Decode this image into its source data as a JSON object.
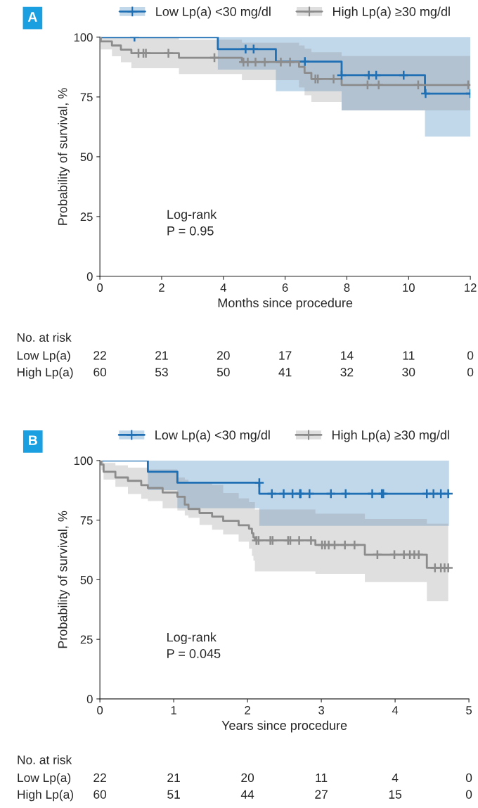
{
  "chart_data": [
    {
      "type": "step",
      "title": "A",
      "xlabel": "Months since procedure",
      "ylabel": "Probability of survival, %",
      "xlim": [
        0,
        12
      ],
      "ylim": [
        0,
        100
      ],
      "xticks": [
        0,
        2,
        4,
        6,
        8,
        10,
        12
      ],
      "yticks": [
        0,
        25,
        50,
        75,
        100
      ],
      "legend": "top",
      "grid": false,
      "series": [
        {
          "name": "Low Lp(a) <30 mg/dl",
          "color": "#1f6fb4",
          "x": [
            0,
            3.82,
            5.7,
            7.83,
            10.53,
            12
          ],
          "values": [
            100,
            95,
            89.8,
            84.1,
            76.4,
            76.4
          ],
          "lower": [
            100,
            86.4,
            77.4,
            69.4,
            58.4,
            58.4
          ],
          "upper": [
            100,
            100,
            100,
            100,
            100,
            100
          ]
        },
        {
          "name": "High Lp(a) ≥30 mg/dl",
          "color": "#8c8c8c",
          "x": [
            0,
            0.03,
            0.39,
            0.68,
            1.02,
            2.56,
            4.6,
            6.45,
            6.63,
            6.85,
            7.83,
            12
          ],
          "values": [
            100,
            98.2,
            96.5,
            94.8,
            93.3,
            91.4,
            89.6,
            87.6,
            85.1,
            82.5,
            80.0,
            80.0
          ],
          "lower": [
            100,
            94.9,
            92.0,
            89.5,
            87.0,
            84.6,
            82.0,
            79.0,
            75.7,
            72.9,
            69.4,
            69.4
          ],
          "upper": [
            100,
            100,
            100,
            100,
            100,
            98.9,
            97.7,
            96.5,
            95.2,
            93.7,
            92.1,
            92.1
          ]
        },
        {
          "type": "scatter",
          "marker": "cross",
          "color": "#1f6fb4",
          "x": [
            1.12,
            4.72,
            4.98,
            6.64,
            7.83,
            8.71,
            8.95,
            9.84,
            10.55,
            12
          ],
          "values": [
            100,
            95,
            95,
            89.8,
            84.1,
            84.1,
            84.1,
            84.1,
            76.4,
            76.4
          ]
        },
        {
          "type": "scatter",
          "marker": "cross",
          "color": "#8c8c8c",
          "x": [
            1.25,
            1.41,
            1.49,
            2.22,
            3.71,
            4.65,
            4.79,
            5.04,
            5.34,
            5.86,
            6.16,
            6.98,
            7.06,
            7.57,
            8.67,
            9.03,
            10.31,
            11.93
          ],
          "values": [
            93.3,
            93.3,
            93.3,
            93.3,
            91.4,
            89.6,
            89.6,
            89.6,
            89.6,
            89.6,
            89.6,
            82.5,
            82.5,
            82.5,
            80,
            80,
            80,
            80
          ]
        }
      ],
      "annotations": [
        "Log-rank\nP = 0.95",
        "No. at risk",
        "Low Lp(a)",
        "High Lp(a)",
        "22",
        "21",
        "20",
        "17",
        "14",
        "11",
        "0",
        "60",
        "53",
        "50",
        "41",
        "32",
        "30",
        "0"
      ]
    },
    {
      "type": "step",
      "title": "B",
      "xlabel": "Years since procedure",
      "ylabel": "Probability of survival, %",
      "xlim": [
        0,
        5
      ],
      "ylim": [
        0,
        100
      ],
      "xticks": [
        0,
        1,
        2,
        3,
        4,
        5
      ],
      "yticks": [
        0,
        25,
        50,
        75,
        100
      ],
      "legend": "top",
      "grid": false,
      "series": [
        {
          "name": "Low Lp(a) <30 mg/dl",
          "color": "#1f6fb4",
          "x": [
            0,
            0.65,
            1.05,
            2.16,
            4.73
          ],
          "values": [
            100,
            95.3,
            90.7,
            86.1,
            86.1
          ],
          "lower": [
            100,
            87.6,
            80.0,
            72.6,
            72.6
          ],
          "upper": [
            100,
            100,
            100,
            100,
            100
          ]
        },
        {
          "name": "High Lp(a) ≥30 mg/dl",
          "color": "#8c8c8c",
          "x": [
            0,
            0.02,
            0.05,
            0.21,
            0.38,
            0.56,
            0.65,
            0.85,
            1.05,
            1.15,
            1.2,
            1.35,
            1.52,
            1.67,
            1.88,
            2.02,
            2.06,
            2.08,
            2.1,
            2.92,
            3.59,
            4.43,
            4.72
          ],
          "values": [
            100,
            98.3,
            95.3,
            92.9,
            91.5,
            89.7,
            88.5,
            86.6,
            84.8,
            81.5,
            79.7,
            78.0,
            76.5,
            74.7,
            72.9,
            71.4,
            69.5,
            67.8,
            66.5,
            64.6,
            60.5,
            55.0,
            55.0
          ],
          "lower": [
            100,
            96,
            92,
            89,
            86,
            84,
            83,
            80,
            79,
            77,
            76,
            73,
            71,
            69,
            66,
            63,
            60,
            58,
            53.5,
            52.5,
            49,
            41,
            41
          ],
          "upper": [
            100,
            100,
            99,
            98,
            97,
            97,
            96.3,
            96.3,
            92.9,
            92,
            91,
            90.5,
            89.7,
            86.4,
            84.1,
            82.6,
            82.6,
            82.6,
            79.5,
            77.7,
            75.5,
            73.5,
            73.5
          ]
        },
        {
          "type": "scatter",
          "marker": "cross",
          "color": "#1f6fb4",
          "x": [
            2.16,
            2.33,
            2.49,
            2.61,
            2.71,
            2.72,
            2.84,
            3.13,
            3.33,
            3.69,
            3.82,
            3.84,
            4.43,
            4.52,
            4.62,
            4.72
          ],
          "values": [
            90.7,
            86.1,
            86.1,
            86.1,
            86.1,
            86.1,
            86.1,
            86.1,
            86.1,
            86.1,
            86.1,
            86.1,
            86.1,
            86.1,
            86.1,
            86.1
          ]
        },
        {
          "type": "scatter",
          "marker": "cross",
          "color": "#8c8c8c",
          "x": [
            2.12,
            2.15,
            2.31,
            2.34,
            2.55,
            2.58,
            2.7,
            2.86,
            3.01,
            3.05,
            3.1,
            3.18,
            3.32,
            3.45,
            3.76,
            3.99,
            4.12,
            4.2,
            4.26,
            4.32,
            4.54,
            4.62,
            4.67,
            4.72
          ],
          "values": [
            66.5,
            66.5,
            66.5,
            66.5,
            66.5,
            66.5,
            66.5,
            66.5,
            64.6,
            64.6,
            64.6,
            64.6,
            64.6,
            64.6,
            60.5,
            60.5,
            60.5,
            60.5,
            60.5,
            60.5,
            55,
            55,
            55,
            55
          ]
        }
      ],
      "annotations": [
        "Log-rank\nP = 0.045",
        "No. at risk",
        "Low Lp(a)",
        "High Lp(a)",
        "22",
        "21",
        "20",
        "11",
        "4",
        "0",
        "60",
        "51",
        "44",
        "27",
        "15",
        "0"
      ]
    }
  ]
}
